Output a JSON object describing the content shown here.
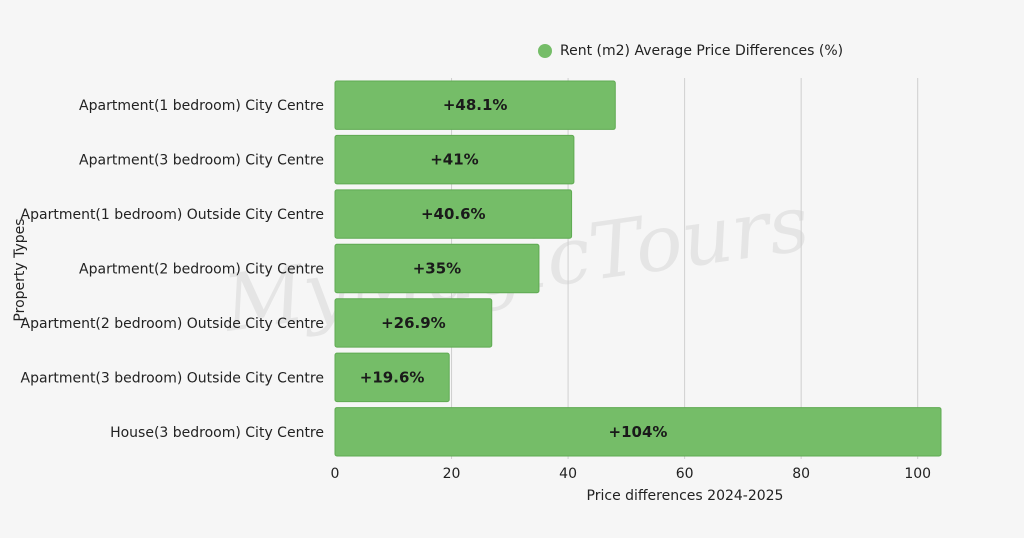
{
  "chart_data": {
    "type": "bar",
    "orientation": "horizontal",
    "categories": [
      "Apartment(1 bedroom) City Centre",
      "Apartment(3 bedroom) City Centre",
      "Apartment(1 bedroom) Outside City Centre",
      "Apartment(2 bedroom) City Centre",
      "Apartment(2 bedroom) Outside City Centre",
      "Apartment(3 bedroom) Outside City Centre",
      "House(3 bedroom) City Centre"
    ],
    "series": [
      {
        "name": "Rent (m2) Average Price Differences (%)",
        "values": [
          48.1,
          41,
          40.6,
          35,
          26.9,
          19.6,
          104
        ],
        "labels": [
          "+48.1%",
          "+41%",
          "+40.6%",
          "+35%",
          "+26.9%",
          "+19.6%",
          "+104%"
        ]
      }
    ],
    "xlabel": "Price differences 2024-2025",
    "ylabel": "Property Types",
    "xlim": [
      0,
      104
    ],
    "xticks": [
      0,
      20,
      40,
      60,
      80,
      100
    ],
    "grid": "vertical",
    "legend_position": "top",
    "bar_color": "#75bd68",
    "bar_border_color": "#5faa52"
  },
  "watermark": "MyMagicTours"
}
